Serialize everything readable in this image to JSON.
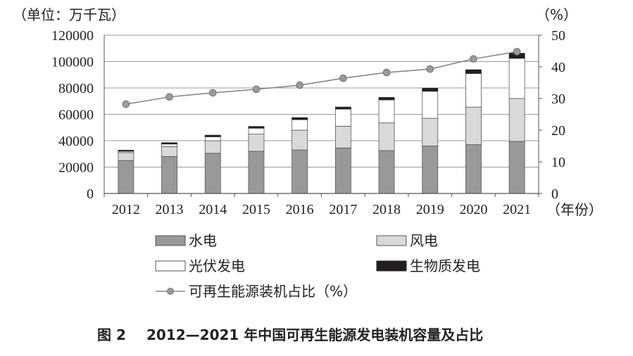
{
  "chart_data": {
    "type": "bar",
    "stacked": true,
    "categories": [
      "2012",
      "2013",
      "2014",
      "2015",
      "2016",
      "2017",
      "2018",
      "2019",
      "2020",
      "2021"
    ],
    "x_unit": "（年份）",
    "y_left": {
      "unit": "（单位：万千瓦）",
      "ylim": [
        0,
        120000
      ],
      "ticks": [
        "120000",
        "100000",
        "80000",
        "60000",
        "40000",
        "20000",
        "0"
      ]
    },
    "y_right": {
      "unit": "（%）",
      "ylim": [
        0,
        50
      ],
      "ticks": [
        "50",
        "40",
        "30",
        "20",
        "10",
        "0"
      ]
    },
    "series": [
      {
        "name": "水电",
        "color": "#999999",
        "values": [
          25000,
          28000,
          30500,
          32000,
          33000,
          34500,
          32500,
          36000,
          37000,
          39500
        ]
      },
      {
        "name": "风电",
        "color": "#d9d9d9",
        "values": [
          6000,
          7500,
          9500,
          13000,
          15000,
          16500,
          21000,
          21000,
          28500,
          32500
        ]
      },
      {
        "name": "光伏发电",
        "color": "#ffffff",
        "values": [
          1000,
          2000,
          3000,
          4500,
          8000,
          13000,
          17500,
          20500,
          25500,
          30500
        ]
      },
      {
        "name": "生物质发电",
        "color": "#231f20",
        "values": [
          800,
          1000,
          1200,
          1300,
          1500,
          1500,
          1800,
          2300,
          2800,
          3800
        ]
      }
    ],
    "line_series": {
      "name": "可再生能源装机占比（%）",
      "color": "#888888",
      "axis": "right",
      "values": [
        28.2,
        30.5,
        31.8,
        32.9,
        34.2,
        36.4,
        38.2,
        39.3,
        42.5,
        44.8
      ]
    },
    "grid": true,
    "legend_placement": "bottom"
  },
  "caption": {
    "figure_label": "图 2",
    "text": "2012—2021 年中国可再生能源发电装机容量及占比"
  }
}
